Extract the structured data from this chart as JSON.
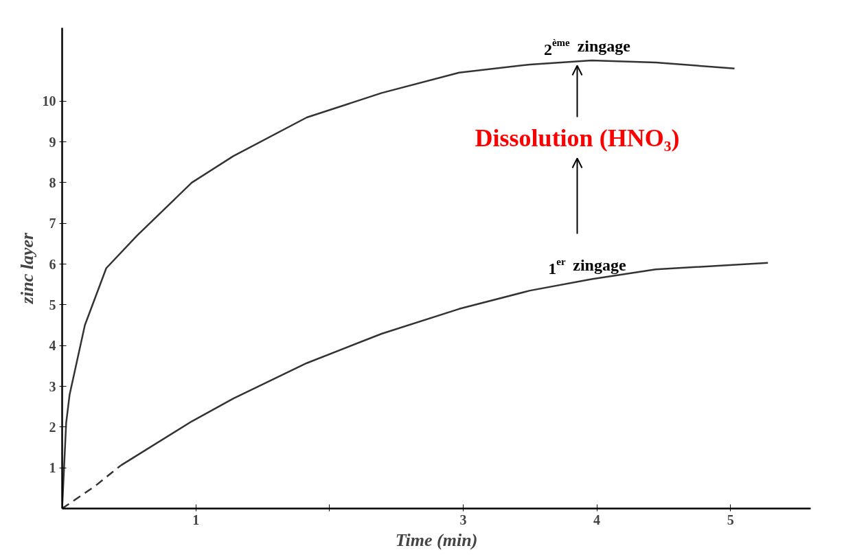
{
  "chart_data": {
    "type": "line",
    "xlabel": "Time (min)",
    "ylabel": "zinc layer",
    "xlim": [
      0,
      5.6
    ],
    "ylim": [
      0,
      11.8
    ],
    "xticks": [
      {
        "value": 1,
        "label": "1"
      },
      {
        "value": 2,
        "label": null
      },
      3,
      4,
      5
    ],
    "yticks": [
      1,
      2,
      3,
      4,
      5,
      6,
      7,
      8,
      9,
      10
    ],
    "grid": false,
    "marker": "none",
    "series": [
      {
        "name": "2$^{ème}$ zingage",
        "color": "#333333",
        "line_style": "solid",
        "x": [
          0,
          0.03,
          0.056,
          0.17,
          0.33,
          0.56,
          0.97,
          1.28,
          1.83,
          2.39,
          2.97,
          3.5,
          3.96,
          4.44,
          5.03
        ],
        "values": [
          0,
          2.1,
          2.8,
          4.5,
          5.9,
          6.7,
          8.0,
          8.65,
          9.6,
          10.2,
          10.7,
          10.9,
          11.0,
          10.95,
          10.8
        ]
      },
      {
        "color": "#333333",
        "line_style": "dashed",
        "x": [
          0,
          0.25,
          0.44
        ],
        "values": [
          0,
          0.56,
          1.06
        ]
      },
      {
        "name": "1$^{er}$ zingage",
        "color": "#333333",
        "line_style": "solid",
        "x": [
          0.44,
          0.97,
          1.28,
          1.83,
          2.39,
          2.97,
          3.5,
          3.96,
          4.44,
          5.28
        ],
        "values": [
          1.06,
          2.14,
          2.7,
          3.57,
          4.29,
          4.9,
          5.35,
          5.63,
          5.87,
          6.03
        ]
      }
    ],
    "annotations": [
      "Dissolution (HNO₃)"
    ]
  }
}
